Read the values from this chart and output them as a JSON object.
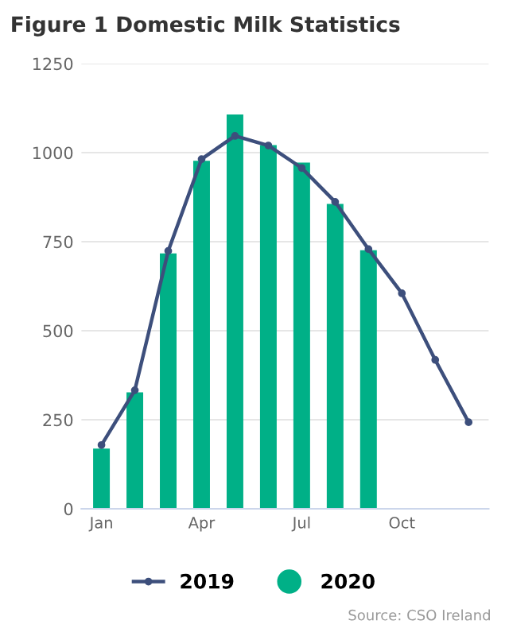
{
  "chart_data": {
    "type": "bar",
    "title": "Figure 1 Domestic Milk Statistics",
    "categories": [
      "Jan",
      null,
      null,
      "Apr",
      null,
      null,
      "Jul",
      null,
      null,
      "Oct",
      null,
      null
    ],
    "series": [
      {
        "name": "2019",
        "type": "line",
        "color": "#3d4f7c",
        "marker": "circle",
        "values": [
          179,
          333,
          724,
          982,
          1047,
          1020,
          957,
          862,
          729,
          605,
          418,
          243
        ]
      },
      {
        "name": "2020",
        "color": "#00b087",
        "values": [
          169,
          327,
          717,
          977,
          1107,
          1021,
          972,
          856,
          726,
          null,
          null,
          null
        ]
      }
    ],
    "ylim": [
      0,
      1250
    ],
    "yticks": [
      0,
      250,
      500,
      750,
      1000,
      1250
    ],
    "grid": "y",
    "legend": "bottom",
    "annotations": [
      "Source: CSO Ireland"
    ]
  }
}
